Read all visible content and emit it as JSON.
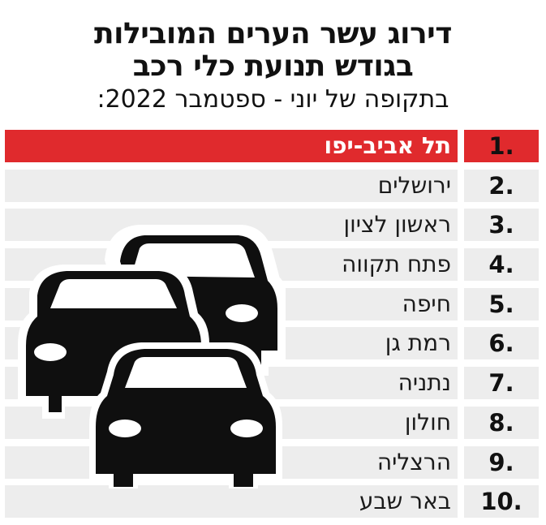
{
  "chart_data": {
    "type": "table",
    "title_line1": "דירוג עשר הערים המובילות",
    "title_line2": "בגודש תנועת כלי רכב",
    "subtitle": "בתקופה של יוני - ספטמבר 2022:",
    "rows": [
      {
        "rank": "1.",
        "city": "תל אביב-יפו"
      },
      {
        "rank": "2.",
        "city": "ירושלים"
      },
      {
        "rank": "3.",
        "city": "ראשון לציון"
      },
      {
        "rank": "4.",
        "city": "פתח תקווה"
      },
      {
        "rank": "5.",
        "city": "חיפה"
      },
      {
        "rank": "6.",
        "city": "רמת גן"
      },
      {
        "rank": "7.",
        "city": "נתניה"
      },
      {
        "rank": "8.",
        "city": "חולון"
      },
      {
        "rank": "9.",
        "city": "הרצליה"
      },
      {
        "rank": "10.",
        "city": "באר שבע"
      }
    ],
    "highlight_color": "#e02a2d",
    "row_color": "#ededed",
    "illustration": "cars-traffic-icon"
  }
}
